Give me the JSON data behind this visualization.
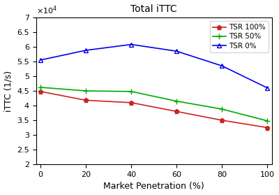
{
  "title": "Total iTTC",
  "xlabel": "Market Penetration (%)",
  "ylabel": "iTTC (1/s)",
  "x": [
    0,
    20,
    40,
    60,
    80,
    100
  ],
  "tsr0": [
    55500,
    58800,
    60800,
    58500,
    53500,
    46000
  ],
  "tsr50": [
    46200,
    45000,
    44800,
    41500,
    38800,
    34800
  ],
  "tsr100": [
    44800,
    41800,
    41000,
    38000,
    35000,
    32500
  ],
  "tsr0_color": "#0000EE",
  "tsr50_color": "#00AA00",
  "tsr100_color": "#CC2222",
  "tsr0_label": "TSR 0%",
  "tsr50_label": "TSR 50%",
  "tsr100_label": "TSR 100%",
  "ylim": [
    20000,
    70000
  ],
  "xlim": [
    -2,
    102
  ],
  "yticks": [
    20000,
    25000,
    30000,
    35000,
    40000,
    45000,
    50000,
    55000,
    60000,
    65000,
    70000
  ],
  "xticks": [
    0,
    20,
    40,
    60,
    80,
    100
  ],
  "scale_factor": 10000
}
